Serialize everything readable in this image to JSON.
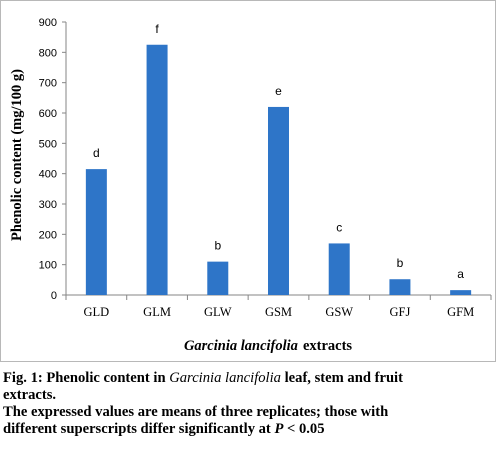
{
  "chart_data": {
    "type": "bar",
    "categories": [
      "GLD",
      "GLM",
      "GLW",
      "GSM",
      "GSW",
      "GFJ",
      "GFM"
    ],
    "values": [
      415,
      825,
      110,
      620,
      170,
      52,
      16
    ],
    "superscripts": [
      "d",
      "f",
      "b",
      "e",
      "c",
      "b",
      "a"
    ],
    "ylabel": "Phenolic content (mg/100 g)",
    "xlabel_italic": "Garcinia lancifolia",
    "xlabel_rest": "extracts",
    "ylim": [
      0,
      900
    ],
    "yticks": [
      0,
      100,
      200,
      300,
      400,
      500,
      600,
      700,
      800,
      900
    ],
    "bar_color": "#2e75c8",
    "grid": false,
    "legend": "none"
  },
  "caption": {
    "fig_label": "Fig. 1:",
    "line1_pre": " Phenolic content in ",
    "line1_italic": "Garcinia lancifolia",
    "line1_post": " leaf, stem and fruit",
    "line2": "extracts.",
    "line3": "The expressed values are means of three replicates; those with",
    "line4_pre": "different superscripts differ significantly at ",
    "line4_italic": "P",
    "line4_post": " < 0.05"
  }
}
